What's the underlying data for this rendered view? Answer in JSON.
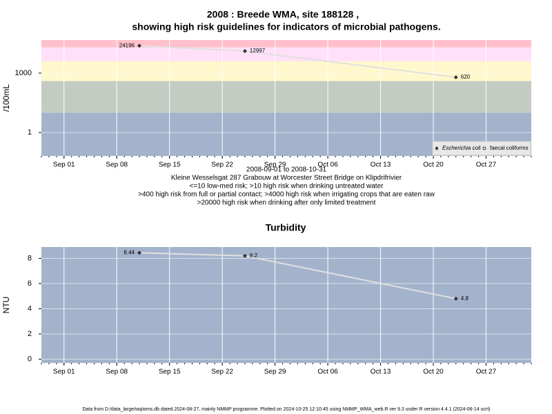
{
  "chart_data": [
    {
      "type": "line",
      "title": "2008 : Breede WMA, site 188128 ,",
      "subtitle": "showing high risk guidelines for indicators of microbial pathogens.",
      "ylabel": "/100mL",
      "log_scale": true,
      "grid": true,
      "legend": "bottom right",
      "xlim": [
        "2008-08-29",
        "2008-11-02"
      ],
      "xticks": [
        {
          "value": "2008-09-01",
          "label": "Sep 01"
        },
        {
          "value": "2008-09-08",
          "label": "Sep 08"
        },
        {
          "value": "2008-09-15",
          "label": "Sep 15"
        },
        {
          "value": "2008-09-22",
          "label": "Sep 22"
        },
        {
          "value": "2008-09-29",
          "label": "Sep 29"
        },
        {
          "value": "2008-10-06",
          "label": "Oct 06"
        },
        {
          "value": "2008-10-13",
          "label": "Oct 13"
        },
        {
          "value": "2008-10-20",
          "label": "Oct 20"
        },
        {
          "value": "2008-10-27",
          "label": "Oct 27"
        }
      ],
      "ylim": [
        0.066,
        47000
      ],
      "yticks": [
        1,
        1000
      ],
      "bands": {
        "thresholds": [
          10,
          400,
          4000,
          20000
        ],
        "colors": [
          "#a3b3cc",
          "#c3cbc3",
          "#fff8cc",
          "#ffe0f8",
          "#ffc0cc"
        ]
      },
      "x": [
        "2008-09-11",
        "2008-09-25",
        "2008-10-23"
      ],
      "series": [
        {
          "name": "Escherichia coli",
          "color": "#333333",
          "marker": "diamond",
          "values": [
            24196,
            12997,
            620
          ]
        },
        {
          "name": "faecal coliforms",
          "color": "#333333",
          "marker": "circle",
          "values": [
            null,
            null,
            null
          ]
        }
      ],
      "line_color": "#e0e0e0",
      "notes": [
        "2008-09-01 to 2008-10-31",
        "Kleine Wesselsgat 287 Grabouw at Worcester Street Bridge on Klipdrifrivier",
        "<=10 low-med risk; >10 high risk when drinking untreated water",
        ">400 high risk from full or partial contact; >4000 high risk when irrigating crops that are eaten raw",
        ">20000 high risk when drinking after only limited treatment"
      ]
    },
    {
      "type": "line",
      "title": "Turbidity",
      "ylabel": "NTU",
      "log_scale": false,
      "grid": true,
      "background": "#a3b3cc",
      "xlim": [
        "2008-08-29",
        "2008-11-02"
      ],
      "xticks": [
        {
          "value": "2008-09-01",
          "label": "Sep 01"
        },
        {
          "value": "2008-09-08",
          "label": "Sep 08"
        },
        {
          "value": "2008-09-15",
          "label": "Sep 15"
        },
        {
          "value": "2008-09-22",
          "label": "Sep 22"
        },
        {
          "value": "2008-09-29",
          "label": "Sep 29"
        },
        {
          "value": "2008-10-06",
          "label": "Oct 06"
        },
        {
          "value": "2008-10-13",
          "label": "Oct 13"
        },
        {
          "value": "2008-10-20",
          "label": "Oct 20"
        },
        {
          "value": "2008-10-27",
          "label": "Oct 27"
        }
      ],
      "ylim": [
        -0.3,
        8.9
      ],
      "yticks": [
        0,
        2,
        4,
        6,
        8
      ],
      "x": [
        "2008-09-11",
        "2008-09-25",
        "2008-10-23"
      ],
      "series": [
        {
          "name": "Turbidity",
          "color": "#333333",
          "marker": "diamond",
          "values": [
            8.44,
            8.2,
            4.8
          ]
        }
      ],
      "line_color": "#e0e0e0"
    }
  ],
  "footer": "Data from D:/data_large/wq/wms.db dated 2024-08-27, mainly NMMP programme. Plotted on 2024-10-25 12:10:45 using NMMP_WMA_web.R ver 9.3 under R version 4.4.1 (2024-06-14 ucrt)"
}
